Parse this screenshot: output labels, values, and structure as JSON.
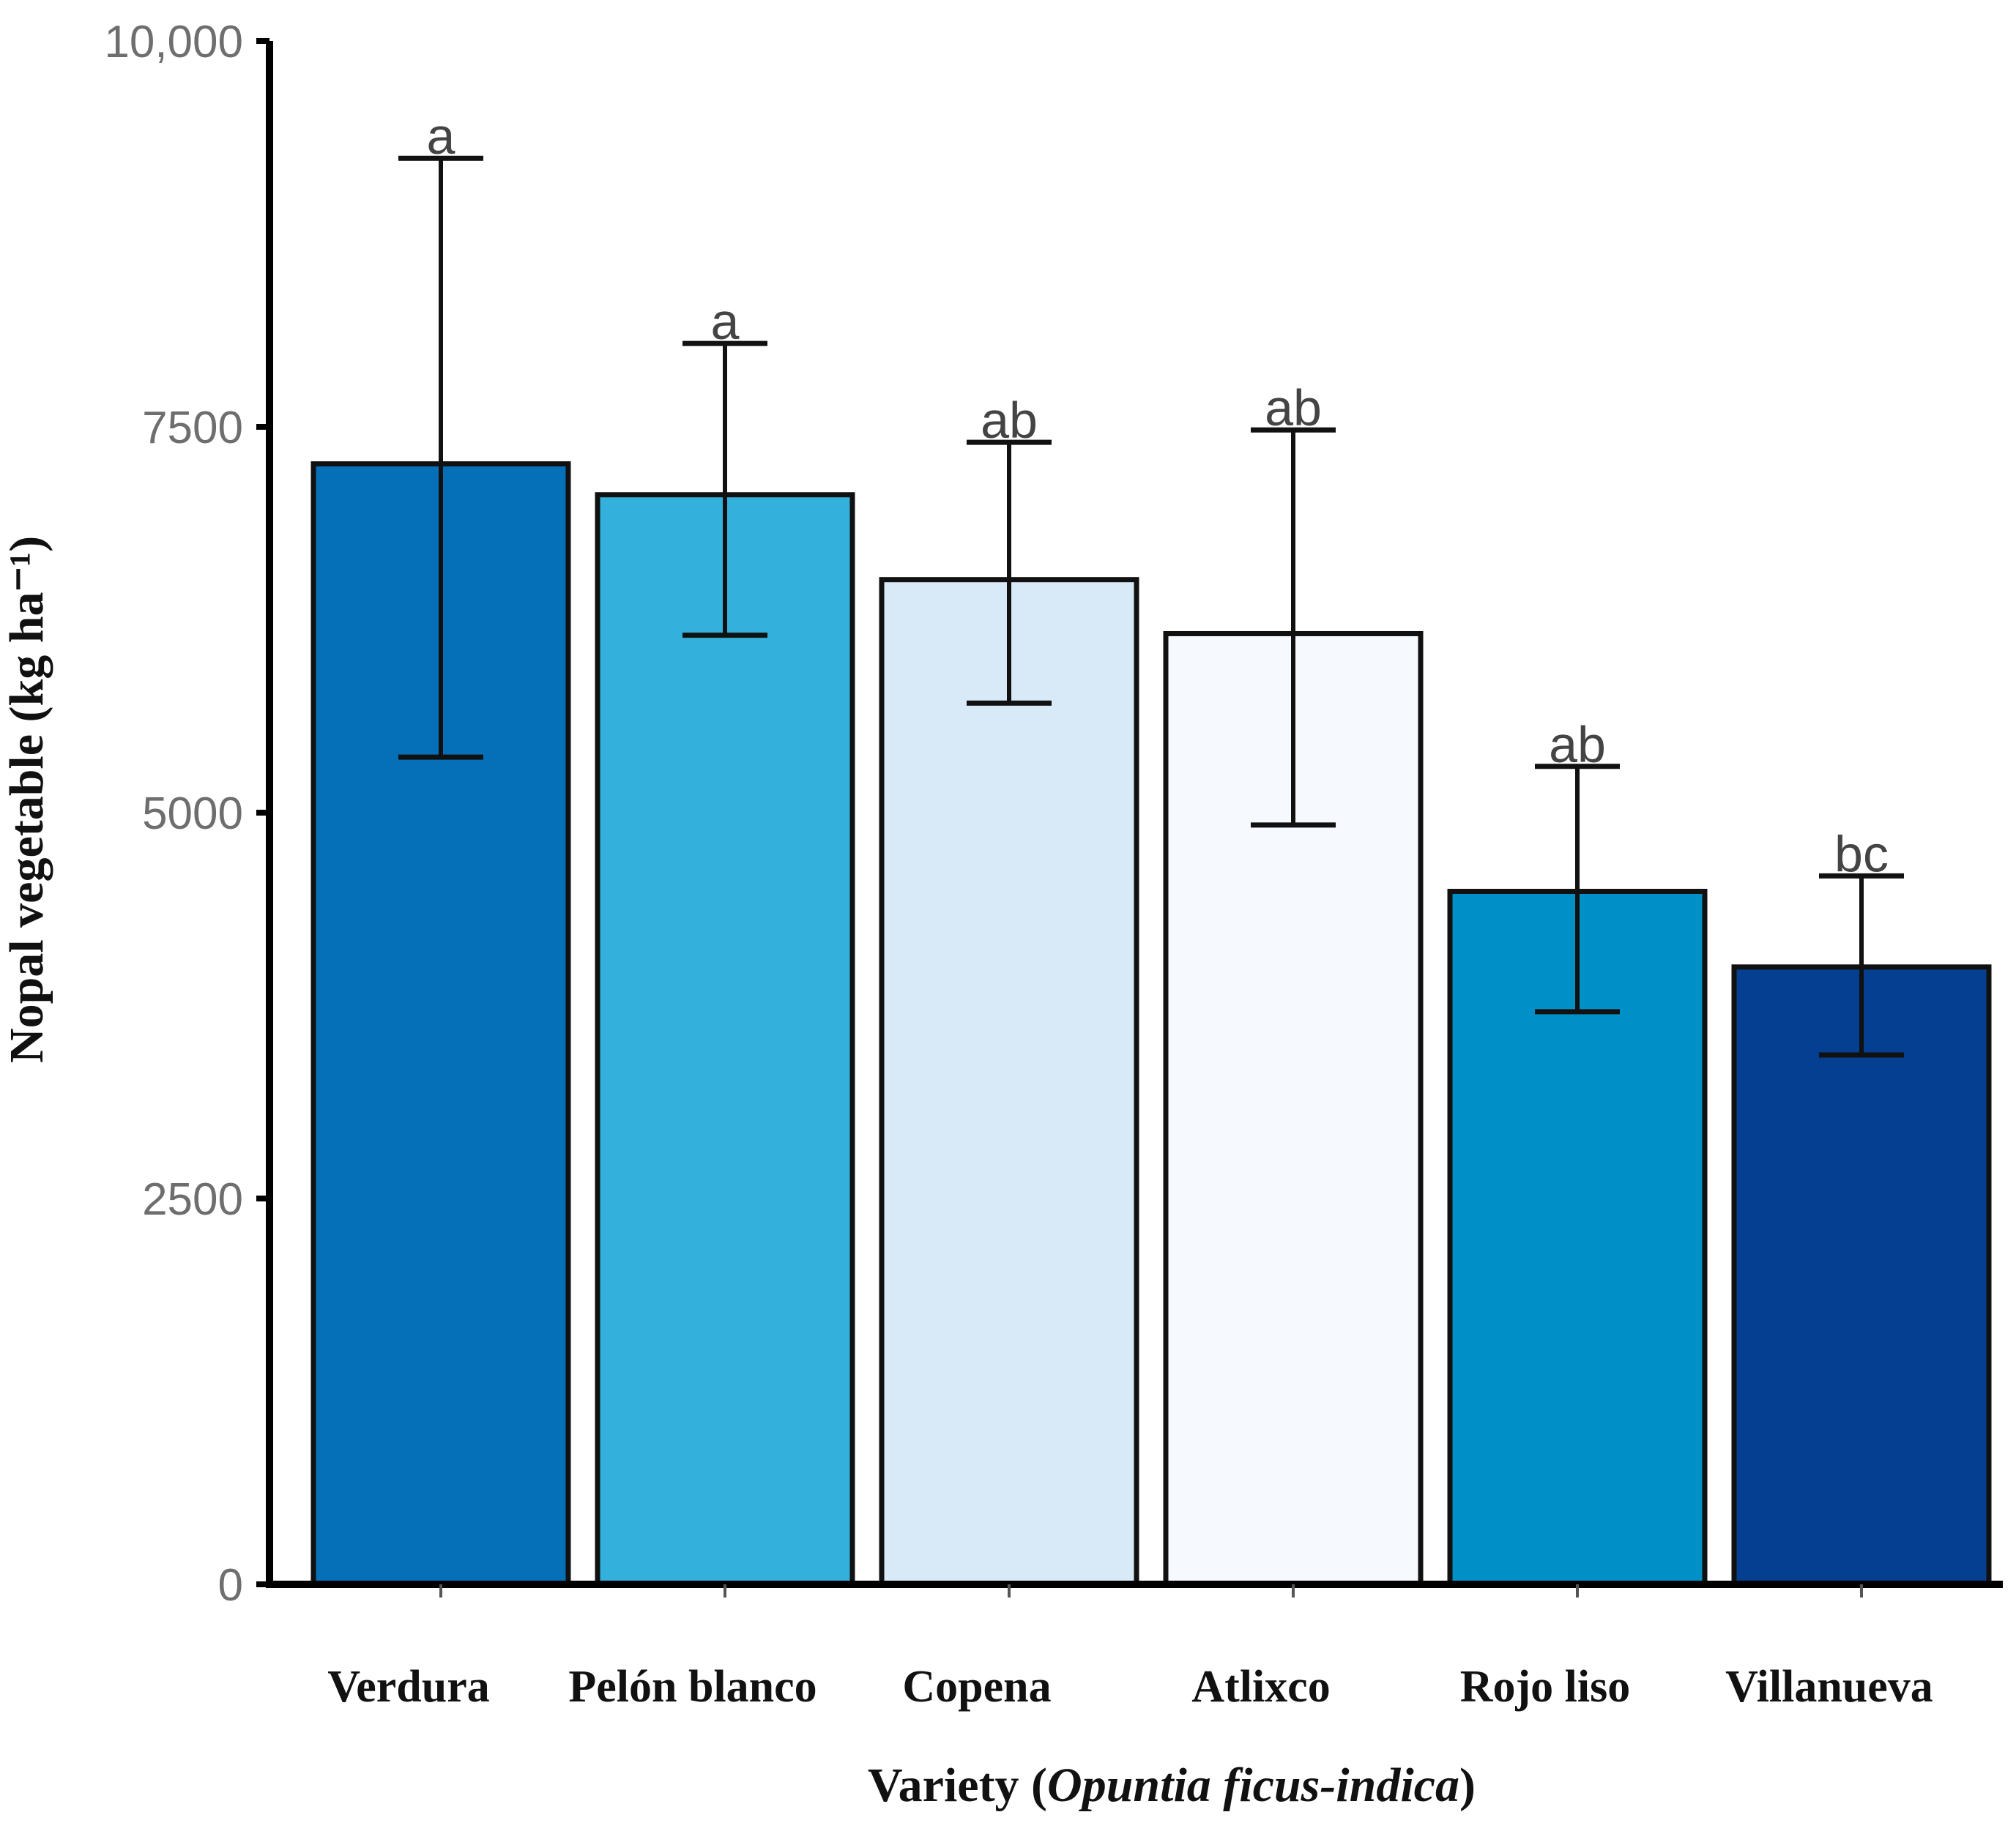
{
  "chart_data": {
    "type": "bar",
    "title": "",
    "xlabel_prefix": "Variety (",
    "xlabel_italic": "Opuntia ficus-indica",
    "xlabel_suffix": ")",
    "ylabel": "Nopal vegetable (kg ha⁻¹)",
    "ylim": [
      0,
      10000
    ],
    "y_ticks": [
      {
        "value": 0,
        "label": "0"
      },
      {
        "value": 2500,
        "label": "2500"
      },
      {
        "value": 5000,
        "label": "5000"
      },
      {
        "value": 7500,
        "label": "7500"
      },
      {
        "value": 10000,
        "label": "10,000"
      }
    ],
    "grid": false,
    "categories": [
      "Verdura",
      "Pelón blanco",
      "Copena",
      "Atlixco",
      "Rojo liso",
      "Villanueva"
    ],
    "values": [
      7260,
      7060,
      6510,
      6160,
      4490,
      4000
    ],
    "error_low": [
      5360,
      6150,
      5710,
      4920,
      3710,
      3430
    ],
    "error_high": [
      9240,
      8040,
      7400,
      7480,
      5300,
      4590
    ],
    "significance": [
      "a",
      "a",
      "ab",
      "ab",
      "ab",
      "bc"
    ],
    "colors": [
      "#0570b7",
      "#33b0dc",
      "#d8e9f7",
      "#f6f9fe",
      "#0090c8",
      "#053f91"
    ]
  }
}
